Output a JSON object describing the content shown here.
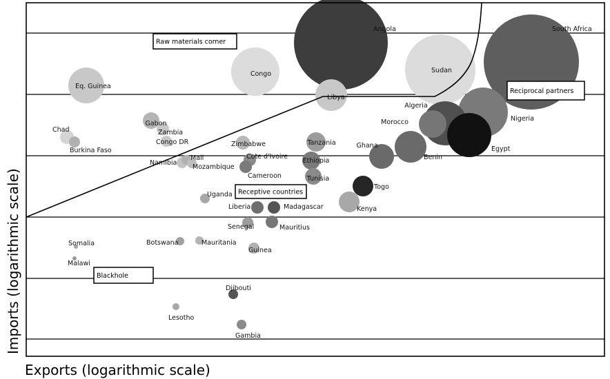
{
  "chart_data": {
    "type": "scatter",
    "title": "",
    "xlabel": "Exports (logarithmic scale)",
    "ylabel": "Imports (logarithmic scale)",
    "x_scale": "log",
    "y_scale": "log",
    "grid": "horizontal",
    "zones": [
      {
        "label": "Raw materials corner"
      },
      {
        "label": "Reciprocal partners"
      },
      {
        "label": "Receptive countries"
      },
      {
        "label": "Blackhole"
      }
    ],
    "points": [
      {
        "name": "Angola",
        "color": "#3d3d3d"
      },
      {
        "name": "South Africa",
        "color": "#5e5e5e"
      },
      {
        "name": "Sudan",
        "color": "#dcdcdc"
      },
      {
        "name": "Congo",
        "color": "#dcdcdc"
      },
      {
        "name": "Libya",
        "color": "#c8c8c8"
      },
      {
        "name": "Eq. Guinea",
        "color": "#c8c8c8"
      },
      {
        "name": "Algeria",
        "color": "#7a7a7a"
      },
      {
        "name": "Nigeria",
        "color": "#4f4f4f"
      },
      {
        "name": "Morocco",
        "color": "#767676"
      },
      {
        "name": "Egypt",
        "color": "#111111"
      },
      {
        "name": "Benin",
        "color": "#6a6a6a"
      },
      {
        "name": "Ghana",
        "color": "#6a6a6a"
      },
      {
        "name": "Togo",
        "color": "#262626"
      },
      {
        "name": "Kenya",
        "color": "#a8a8a8"
      },
      {
        "name": "Tanzania",
        "color": "#9c9c9c"
      },
      {
        "name": "Ethiopia",
        "color": "#7a7a7a"
      },
      {
        "name": "Tunisia",
        "color": "#8a8a8a"
      },
      {
        "name": "Zimbabwe",
        "color": "#b8b8b8"
      },
      {
        "name": "Cote d'Ivoire",
        "color": "#8a8a8a"
      },
      {
        "name": "Cameroon",
        "color": "#7a7a7a"
      },
      {
        "name": "Gabon",
        "color": "#b4b4b4"
      },
      {
        "name": "Zambia",
        "color": "#c8c8c8"
      },
      {
        "name": "Congo DR",
        "color": "#c8c8c8"
      },
      {
        "name": "Chad",
        "color": "#d4d4d4"
      },
      {
        "name": "Burkina Faso",
        "color": "#b0b0b0"
      },
      {
        "name": "Namibia",
        "color": "#c4c4c4"
      },
      {
        "name": "Mali",
        "color": "#b0b0b0"
      },
      {
        "name": "Mozambique",
        "color": "#bdbdbd"
      },
      {
        "name": "Uganda",
        "color": "#a8a8a8"
      },
      {
        "name": "Liberia",
        "color": "#6e6e6e"
      },
      {
        "name": "Madagascar",
        "color": "#555555"
      },
      {
        "name": "Senegal",
        "color": "#9c9c9c"
      },
      {
        "name": "Mauritius",
        "color": "#777777"
      },
      {
        "name": "Guinea",
        "color": "#b0b0b0"
      },
      {
        "name": "Botswana",
        "color": "#a0a0a0"
      },
      {
        "name": "Mauritania",
        "color": "#b4b4b4"
      },
      {
        "name": "Somalia",
        "color": "#a8a8a8"
      },
      {
        "name": "Malawi",
        "color": "#999999"
      },
      {
        "name": "Djibouti",
        "color": "#555555"
      },
      {
        "name": "Lesotho",
        "color": "#a8a8a8"
      },
      {
        "name": "Gambia",
        "color": "#8a8a8a"
      }
    ]
  }
}
